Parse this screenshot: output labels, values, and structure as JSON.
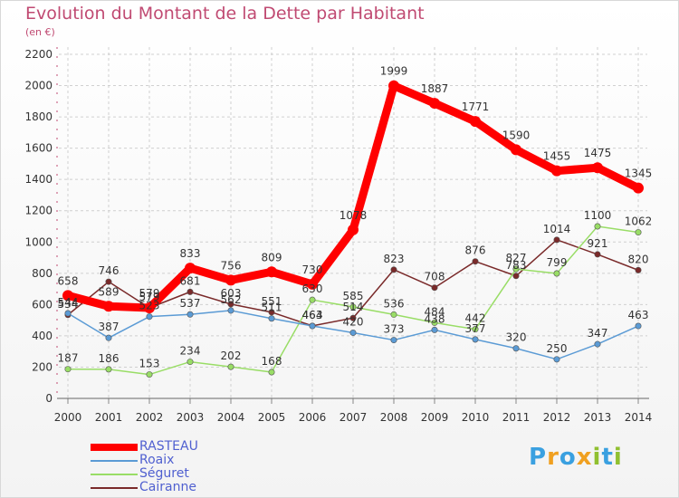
{
  "title": "Evolution du Montant de la Dette par Habitant",
  "subtitle": "(en €)",
  "logo": "Proxiti",
  "chart_data": {
    "type": "line",
    "title": "Evolution du Montant de la Dette par Habitant",
    "subtitle": "(en €)",
    "xlabel": "",
    "ylabel": "",
    "ylim": [
      0,
      2200
    ],
    "yticks": [
      0,
      200,
      400,
      600,
      800,
      1000,
      1200,
      1400,
      1600,
      1800,
      2000,
      2200
    ],
    "x": [
      "2000",
      "2001",
      "2002",
      "2003",
      "2004",
      "2005",
      "2006",
      "2007",
      "2008",
      "2009",
      "2010",
      "2011",
      "2012",
      "2013",
      "2014"
    ],
    "grid": true,
    "legend_position": "bottom-left",
    "series": [
      {
        "name": "RASTEAU",
        "color": "#ff0000",
        "values": [
          658,
          589,
          579,
          833,
          756,
          809,
          730,
          1078,
          1999,
          1887,
          1771,
          1590,
          1455,
          1475,
          1345
        ]
      },
      {
        "name": "Roaix",
        "color": "#5b9bd5",
        "values": [
          544,
          387,
          523,
          537,
          562,
          511,
          463,
          420,
          373,
          438,
          377,
          320,
          250,
          347,
          463
        ]
      },
      {
        "name": "Séguret",
        "color": "#99dd66",
        "values": [
          187,
          186,
          153,
          234,
          202,
          168,
          630,
          585,
          536,
          484,
          442,
          827,
          799,
          1100,
          1062
        ]
      },
      {
        "name": "Cairanne",
        "color": "#7a2a2a",
        "values": [
          534,
          746,
          579,
          681,
          603,
          551,
          464,
          514,
          823,
          708,
          876,
          783,
          1014,
          921,
          820
        ]
      }
    ]
  }
}
